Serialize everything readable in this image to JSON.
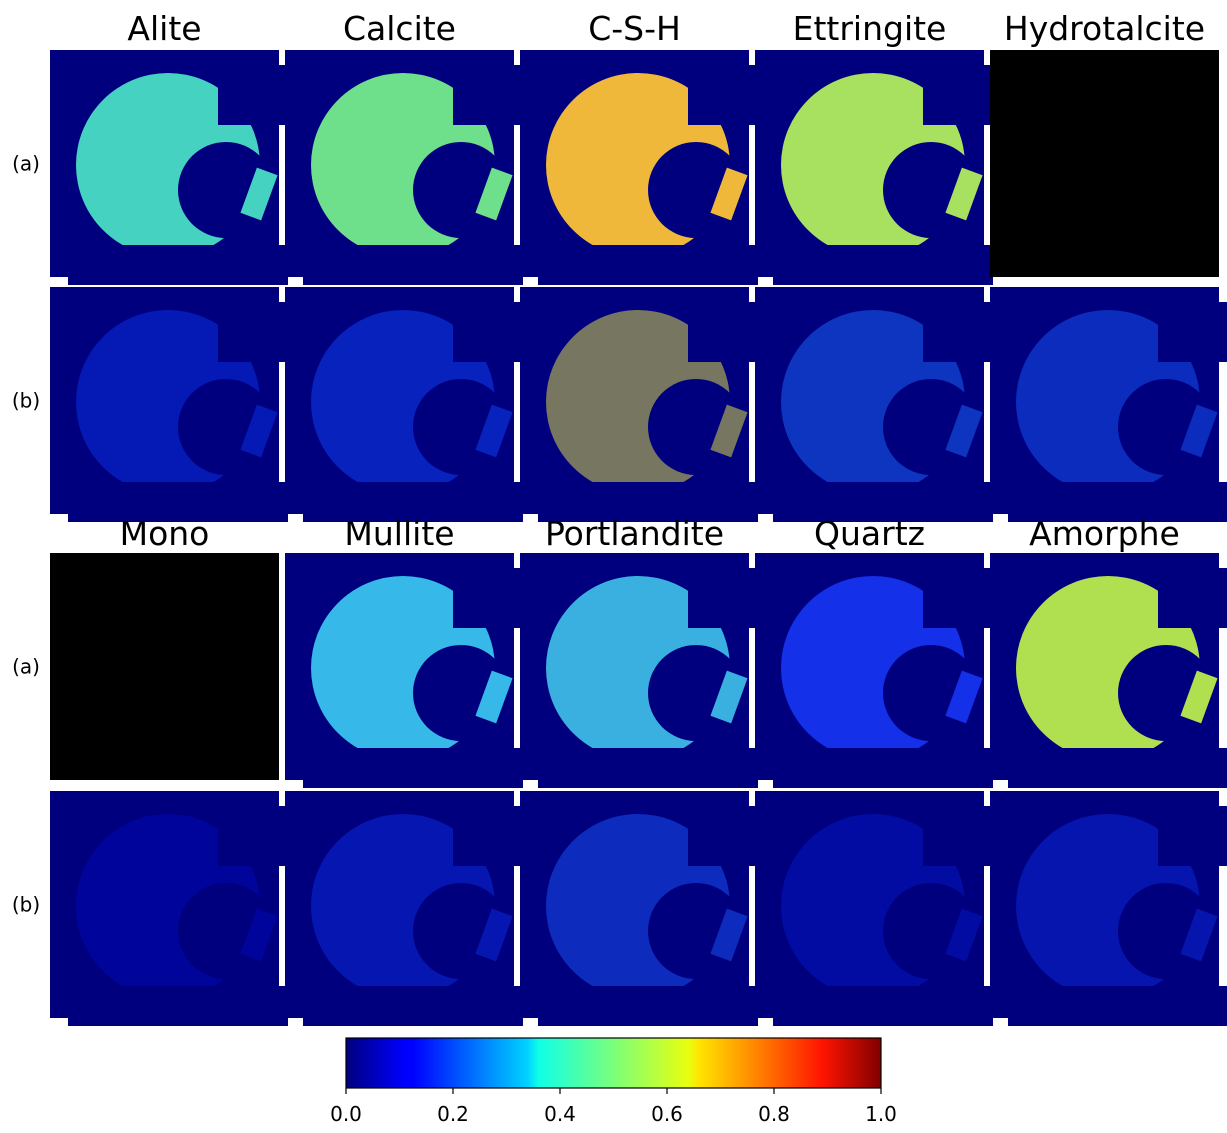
{
  "chart_data": {
    "type": "heatmap",
    "panel_groups": [
      {
        "titles": [
          "Alite",
          "Calcite",
          "C-S-H",
          "Ettringite",
          "Hydrotalcite"
        ],
        "row_labels": [
          "(a)",
          "(b)"
        ]
      },
      {
        "titles": [
          "Mono",
          "Mullite",
          "Portlandite",
          "Quartz",
          "Amorphe"
        ],
        "row_labels": [
          "(a)",
          "(b)"
        ]
      }
    ],
    "colormap": "jet",
    "colorbar": {
      "lim": [
        0,
        1
      ],
      "ticks": [
        {
          "value": 0,
          "label": "0.0"
        },
        {
          "value": 0.2,
          "label": "0.2"
        },
        {
          "value": 0.4,
          "label": "0.4"
        },
        {
          "value": 0.6,
          "label": "0.6"
        },
        {
          "value": 0.8,
          "label": "0.8"
        },
        {
          "value": 1,
          "label": "1.0"
        }
      ]
    }
  }
}
